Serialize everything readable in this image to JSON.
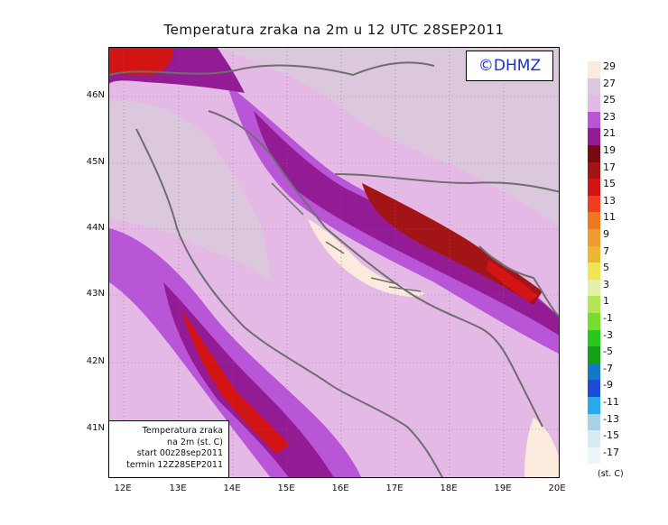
{
  "title": "Temperatura zraka na 2m u 12 UTC 28SEP2011",
  "logo": "©DHMZ",
  "info_box": {
    "line1": "Temperatura zraka",
    "line2": "na 2m (st. C)",
    "line3": "start 00z28sep2011",
    "line4": "termin 12Z28SEP2011"
  },
  "lat_labels": [
    "46N",
    "45N",
    "44N",
    "43N",
    "42N",
    "41N"
  ],
  "lon_labels": [
    "12E",
    "13E",
    "14E",
    "15E",
    "16E",
    "17E",
    "18E",
    "19E",
    "20E"
  ],
  "colorbar": {
    "labels": [
      "29",
      "27",
      "25",
      "23",
      "21",
      "19",
      "17",
      "15",
      "13",
      "11",
      "9",
      "7",
      "5",
      "3",
      "1",
      "-1",
      "-3",
      "-5",
      "-7",
      "-9",
      "-11",
      "-13",
      "-15",
      "-17"
    ],
    "colors": [
      "#fcebdc",
      "#dcc8dc",
      "#e5b9e5",
      "#b955d7",
      "#931b93",
      "#780a14",
      "#a31417",
      "#d21414",
      "#f03c1e",
      "#f0781e",
      "#f09b32",
      "#eab932",
      "#f0e655",
      "#e4f0aa",
      "#b4e655",
      "#7adc2a",
      "#28c81e",
      "#14a014",
      "#1478c8",
      "#1e4bd7",
      "#28aaeb",
      "#aad2e6",
      "#d7ebf5",
      "#ebf5fa"
    ],
    "unit": "(st. C)"
  },
  "map_colors": {
    "background_low": "#e5b9e5",
    "mid": "#dcc8dc",
    "warm": "#b955d7",
    "hot": "#931b93",
    "hotter": "#a31417",
    "hottest": "#d21414",
    "pale": "#fcebdc"
  }
}
